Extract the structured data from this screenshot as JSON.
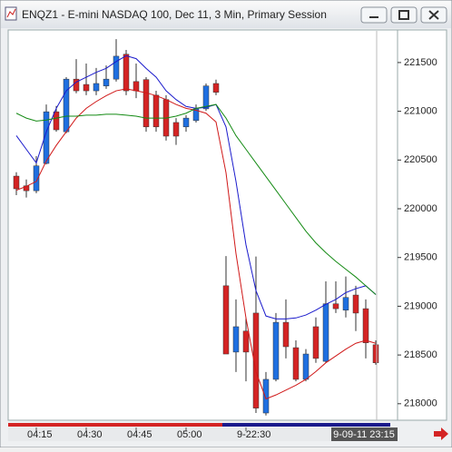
{
  "chart_data": {
    "type": "candlestick",
    "title": "ENQZ1 - E-mini NASDAQ 100, Dec 11, 3 Min, Primary Session",
    "categories": [
      null,
      null,
      "04:15",
      null,
      null,
      null,
      null,
      "04:30",
      null,
      null,
      null,
      null,
      "04:45",
      null,
      null,
      null,
      null,
      "05:00",
      null,
      null,
      null,
      null,
      null,
      "9-22:30",
      null,
      null,
      null,
      null,
      null,
      null,
      null,
      null,
      null,
      null,
      null,
      null,
      null
    ],
    "open": [
      220335,
      220235,
      220185,
      220465,
      220995,
      220790,
      221330,
      221275,
      221210,
      221260,
      221330,
      221585,
      221305,
      221325,
      221165,
      221120,
      220885,
      220840,
      220905,
      221025,
      221285,
      219210,
      218530,
      218745,
      218930,
      217905,
      218250,
      218835,
      218575,
      218250,
      218790,
      218435,
      219025,
      218960,
      219115,
      218975,
      218605
    ],
    "high": [
      220375,
      220300,
      220540,
      221070,
      221055,
      221350,
      221535,
      221490,
      221445,
      221470,
      221740,
      221630,
      221490,
      221350,
      221210,
      221165,
      220930,
      220960,
      221070,
      221285,
      221325,
      219515,
      219070,
      218885,
      219510,
      218325,
      218930,
      219070,
      218650,
      218560,
      218885,
      219255,
      219255,
      219305,
      219210,
      219070,
      218650
    ],
    "low": [
      220140,
      220115,
      220160,
      220455,
      220790,
      220775,
      221185,
      221165,
      221165,
      221230,
      221305,
      221165,
      221135,
      220790,
      220790,
      220700,
      220655,
      220790,
      220885,
      221005,
      221165,
      218510,
      218325,
      218230,
      217905,
      217880,
      218230,
      218465,
      218230,
      218230,
      218420,
      218420,
      218930,
      218885,
      218745,
      218465,
      218400
    ],
    "close": [
      220205,
      220185,
      220440,
      220995,
      220810,
      221330,
      221210,
      221210,
      221285,
      221330,
      221565,
      221210,
      221210,
      220840,
      220840,
      220745,
      220745,
      220930,
      221025,
      221260,
      221195,
      218510,
      218790,
      218530,
      217955,
      218250,
      218835,
      218585,
      218250,
      218510,
      218465,
      219025,
      218975,
      219090,
      218930,
      218625,
      218420
    ],
    "up_color": "#1f6fe0",
    "down_color": "#d42424",
    "lines": [
      {
        "color": "#1a1acc",
        "values": [
          220750,
          220610,
          220470,
          220790,
          221030,
          221210,
          221300,
          221350,
          221400,
          221440,
          221510,
          221570,
          221540,
          221440,
          221350,
          221210,
          221120,
          221050,
          221030,
          221040,
          221070,
          220840,
          220280,
          219630,
          219160,
          218900,
          218870,
          218870,
          218880,
          218910,
          218960,
          219020,
          219070,
          219140,
          219180,
          219210,
          219120
        ]
      },
      {
        "color": "#d01818",
        "values": [
          220190,
          220230,
          220280,
          220490,
          220650,
          220790,
          220930,
          221030,
          221100,
          221160,
          221210,
          221230,
          221210,
          221190,
          221160,
          221120,
          221070,
          221030,
          221010,
          220980,
          220890,
          220370,
          219540,
          218880,
          218330,
          218050,
          218090,
          218140,
          218190,
          218250,
          218330,
          218420,
          218490,
          218560,
          218620,
          218650,
          218620
        ]
      },
      {
        "color": "#138a13",
        "values": [
          220980,
          220930,
          220900,
          220910,
          220930,
          220950,
          220950,
          220960,
          220960,
          220970,
          220970,
          220960,
          220950,
          220930,
          220930,
          220930,
          220950,
          220980,
          221030,
          221050,
          221070,
          220930,
          220750,
          220610,
          220470,
          220330,
          220190,
          220050,
          219910,
          219770,
          219650,
          219550,
          219460,
          219380,
          219300,
          219210,
          219120
        ]
      }
    ],
    "ylim": [
      217840,
      221825
    ],
    "yticks": [
      218000,
      218500,
      219000,
      219500,
      220000,
      220500,
      221000,
      221500
    ],
    "cursor_label": "9-09-11 23:15"
  }
}
